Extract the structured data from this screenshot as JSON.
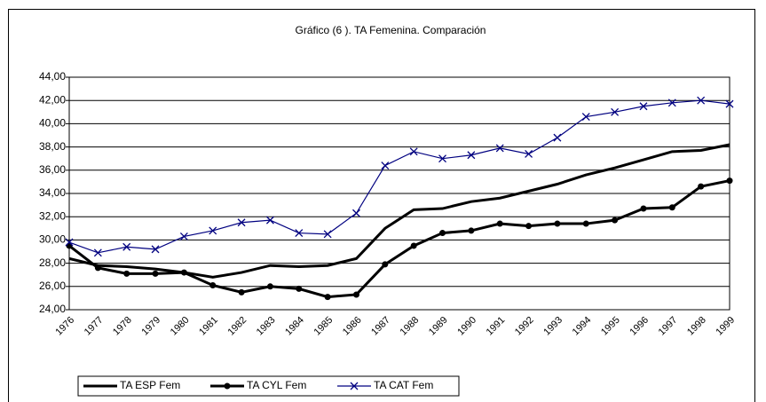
{
  "chart_data": {
    "type": "line",
    "title": "Gráfico (6 ). TA Femenina. Comparación",
    "categories": [
      "1976",
      "1977",
      "1978",
      "1979",
      "1980",
      "1981",
      "1982",
      "1983",
      "1984",
      "1985",
      "1986",
      "1987",
      "1988",
      "1989",
      "1990",
      "1991",
      "1992",
      "1993",
      "1994",
      "1995",
      "1996",
      "1997",
      "1998",
      "1999"
    ],
    "series": [
      {
        "name": "TA ESP Fem",
        "color": "#000000",
        "marker": "none",
        "values": [
          28.4,
          27.8,
          27.7,
          27.5,
          27.2,
          26.8,
          27.2,
          27.8,
          27.7,
          27.8,
          28.4,
          31.0,
          32.6,
          32.7,
          33.3,
          33.6,
          34.2,
          34.8,
          35.6,
          36.2,
          36.9,
          37.6,
          37.7,
          38.2
        ]
      },
      {
        "name": "TA CYL Fem",
        "color": "#000000",
        "marker": "circle",
        "values": [
          29.5,
          27.6,
          27.1,
          27.1,
          27.2,
          26.1,
          25.5,
          26.0,
          25.8,
          25.1,
          25.3,
          27.9,
          29.5,
          30.6,
          30.8,
          31.4,
          31.2,
          31.4,
          31.4,
          31.7,
          32.7,
          32.8,
          34.6,
          35.1
        ]
      },
      {
        "name": "TA CAT Fem",
        "color": "#000080",
        "marker": "x",
        "values": [
          29.8,
          28.9,
          29.4,
          29.2,
          30.3,
          30.8,
          31.5,
          31.7,
          30.6,
          30.5,
          32.3,
          36.4,
          37.6,
          37.0,
          37.3,
          37.9,
          37.4,
          38.8,
          40.6,
          41.0,
          41.5,
          41.8,
          42.0,
          41.7
        ]
      }
    ],
    "ylim": [
      24,
      44
    ],
    "yticks": [
      {
        "value": 24,
        "label": "24,00"
      },
      {
        "value": 26,
        "label": "26,00"
      },
      {
        "value": 28,
        "label": "28,00"
      },
      {
        "value": 30,
        "label": "30,00"
      },
      {
        "value": 32,
        "label": "32,00"
      },
      {
        "value": 34,
        "label": "34,00"
      },
      {
        "value": 36,
        "label": "36,00"
      },
      {
        "value": 38,
        "label": "38,00"
      },
      {
        "value": 40,
        "label": "40,00"
      },
      {
        "value": 42,
        "label": "42,00"
      },
      {
        "value": 44,
        "label": "44,00"
      }
    ],
    "grid": true,
    "legend": "bottom-left"
  }
}
